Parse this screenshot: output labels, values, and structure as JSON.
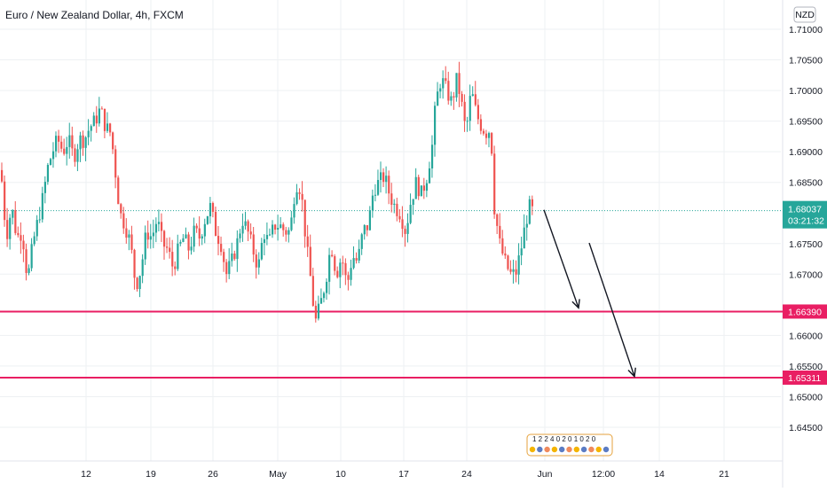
{
  "header": {
    "title": "Euro / New Zealand Dollar, 4h, FXCM"
  },
  "currency_badge": "NZD",
  "colors": {
    "up": "#26a69a",
    "down": "#ef5350",
    "level_line": "#e91e63",
    "price_tag": "#26a69a",
    "grid": "#eef0f3",
    "text": "#131722"
  },
  "price_label": {
    "price": "1.68037",
    "countdown": "03:21:32"
  },
  "levels": [
    {
      "price": 1.6639,
      "label": "1.66390"
    },
    {
      "price": 1.65311,
      "label": "1.65311"
    }
  ],
  "events_badge": "1 2 2 4 0 2 0 1 0 2 0",
  "chart_data": {
    "type": "candlestick",
    "title": "Euro / New Zealand Dollar, 4h, FXCM",
    "y_axis": {
      "range": [
        1.6405,
        1.713
      ],
      "ticks": [
        "1.71000",
        "1.70500",
        "1.70000",
        "1.69500",
        "1.69000",
        "1.68500",
        "1.67500",
        "1.67000",
        "1.66000",
        "1.65500",
        "1.65000",
        "1.64500"
      ]
    },
    "x_axis": {
      "ticks": [
        "12",
        "19",
        "26",
        "May",
        "10",
        "17",
        "24",
        "Jun",
        "12:00",
        "14",
        "21"
      ]
    },
    "current_price": 1.68037,
    "path": [
      [
        0,
        1.687
      ],
      [
        6,
        1.676
      ],
      [
        12,
        1.681
      ],
      [
        18,
        1.676
      ],
      [
        24,
        1.677
      ],
      [
        30,
        1.669
      ],
      [
        36,
        1.675
      ],
      [
        42,
        1.679
      ],
      [
        48,
        1.683
      ],
      [
        52,
        1.687
      ],
      [
        58,
        1.69
      ],
      [
        64,
        1.692
      ],
      [
        70,
        1.69
      ],
      [
        76,
        1.692
      ],
      [
        82,
        1.689
      ],
      [
        88,
        1.692
      ],
      [
        94,
        1.692
      ],
      [
        100,
        1.694
      ],
      [
        106,
        1.695
      ],
      [
        112,
        1.697
      ],
      [
        118,
        1.694
      ],
      [
        124,
        1.693
      ],
      [
        128,
        1.688
      ],
      [
        134,
        1.68
      ],
      [
        140,
        1.678
      ],
      [
        146,
        1.675
      ],
      [
        152,
        1.668
      ],
      [
        158,
        1.671
      ],
      [
        164,
        1.677
      ],
      [
        170,
        1.676
      ],
      [
        176,
        1.679
      ],
      [
        182,
        1.675
      ],
      [
        188,
        1.674
      ],
      [
        194,
        1.671
      ],
      [
        200,
        1.674
      ],
      [
        206,
        1.676
      ],
      [
        212,
        1.674
      ],
      [
        218,
        1.677
      ],
      [
        224,
        1.676
      ],
      [
        230,
        1.679
      ],
      [
        236,
        1.681
      ],
      [
        242,
        1.677
      ],
      [
        248,
        1.675
      ],
      [
        254,
        1.67
      ],
      [
        260,
        1.672
      ],
      [
        266,
        1.675
      ],
      [
        272,
        1.679
      ],
      [
        278,
        1.677
      ],
      [
        284,
        1.674
      ],
      [
        290,
        1.671
      ],
      [
        296,
        1.677
      ],
      [
        302,
        1.675
      ],
      [
        308,
        1.678
      ],
      [
        314,
        1.678
      ],
      [
        320,
        1.677
      ],
      [
        326,
        1.677
      ],
      [
        332,
        1.685
      ],
      [
        338,
        1.684
      ],
      [
        344,
        1.675
      ],
      [
        350,
        1.668
      ],
      [
        354,
        1.662
      ],
      [
        360,
        1.665
      ],
      [
        366,
        1.669
      ],
      [
        372,
        1.675
      ],
      [
        378,
        1.67
      ],
      [
        384,
        1.673
      ],
      [
        390,
        1.668
      ],
      [
        396,
        1.673
      ],
      [
        402,
        1.672
      ],
      [
        408,
        1.677
      ],
      [
        414,
        1.678
      ],
      [
        420,
        1.684
      ],
      [
        426,
        1.685
      ],
      [
        432,
        1.686
      ],
      [
        438,
        1.683
      ],
      [
        444,
        1.681
      ],
      [
        450,
        1.68
      ],
      [
        456,
        1.677
      ],
      [
        462,
        1.682
      ],
      [
        468,
        1.685
      ],
      [
        474,
        1.683
      ],
      [
        480,
        1.686
      ],
      [
        486,
        1.691
      ],
      [
        490,
        1.698
      ],
      [
        496,
        1.702
      ],
      [
        502,
        1.7
      ],
      [
        508,
        1.698
      ],
      [
        514,
        1.702
      ],
      [
        520,
        1.697
      ],
      [
        524,
        1.693
      ],
      [
        530,
        1.7
      ],
      [
        536,
        1.696
      ],
      [
        542,
        1.694
      ],
      [
        548,
        1.693
      ],
      [
        552,
        1.694
      ],
      [
        556,
        1.681
      ],
      [
        562,
        1.675
      ],
      [
        568,
        1.672
      ],
      [
        574,
        1.67
      ],
      [
        580,
        1.67
      ],
      [
        586,
        1.674
      ],
      [
        592,
        1.679
      ],
      [
        596,
        1.681
      ],
      [
        600,
        1.68
      ]
    ],
    "annotations": {
      "arrows": [
        {
          "from": [
            613,
            1.6805
          ],
          "to": [
            652,
            1.6645
          ]
        },
        {
          "from": [
            664,
            1.6751
          ],
          "to": [
            715,
            1.6533
          ]
        }
      ]
    }
  }
}
